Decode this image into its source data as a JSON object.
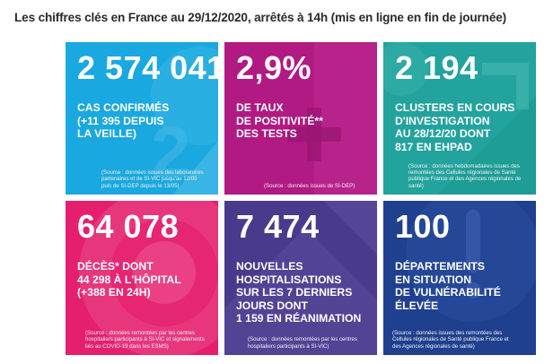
{
  "header": {
    "title": "Les chiffres clés en France au 29/12/2020, arrêtés à 14h (mis en ligne en fin de journée)"
  },
  "colors": {
    "cases": "#1aa8e0",
    "positivity": "#b01a82",
    "clusters": "#1e9c96",
    "deaths": "#e51f6e",
    "hospital": "#4a3a8c",
    "departments": "#1f3f8f"
  },
  "cards": [
    {
      "value": "2 574 041",
      "desc": [
        "CAS CONFIRMÉS",
        "(+11 395 DEPUIS",
        "LA VEILLE)"
      ],
      "source": [
        "(Source : données issues des laboratoires",
        "partenaires et de SI-VIC jusqu'au 12/05",
        "puis de SI-DEP depuis le 13/05)"
      ]
    },
    {
      "value": "2,9%",
      "desc": [
        "DE TAUX",
        "DE POSITIVITÉ**",
        "DES TESTS"
      ],
      "source": [
        "(Source : données issues de SI-DEP)"
      ]
    },
    {
      "value": "2 194",
      "desc": [
        "CLUSTERS EN COURS",
        "D'INVESTIGATION",
        "AU 28/12/20 DONT",
        "817 EN EHPAD"
      ],
      "source": [
        "(Source : données hebdomadaires issues des",
        "remontées des Cellules régionales de Santé",
        "publique France et des Agences régionales de",
        "santé)"
      ]
    },
    {
      "value": "64 078",
      "desc": [
        "DÉCÈS* DONT",
        "44 298 À L'HÔPITAL",
        "(+388 EN 24H)"
      ],
      "source": [
        "(Source : données remontées par les centres",
        "hospitaliers participants à SI-VIC et signalements",
        "liés au COVID-19 dans les ESMS)"
      ]
    },
    {
      "value": "7 474",
      "desc": [
        "NOUVELLES",
        "HOSPITALISATIONS",
        "SUR LES 7 DERNIERS",
        "JOURS DONT",
        "1 159 EN RÉANIMATION"
      ],
      "source": [
        "(Source : données remontées par les centres",
        "hospitaliers participants à SI-VIC)"
      ]
    },
    {
      "value": "100",
      "desc": [
        "DÉPARTEMENTS",
        "EN SITUATION",
        "DE VULNÉRABILITÉ",
        "ÉLEVÉE"
      ],
      "source": [
        "(Source : données issues des remontées des",
        "Cellules régionales de Santé publique France et",
        "des Agences régionales de santé)"
      ]
    }
  ]
}
